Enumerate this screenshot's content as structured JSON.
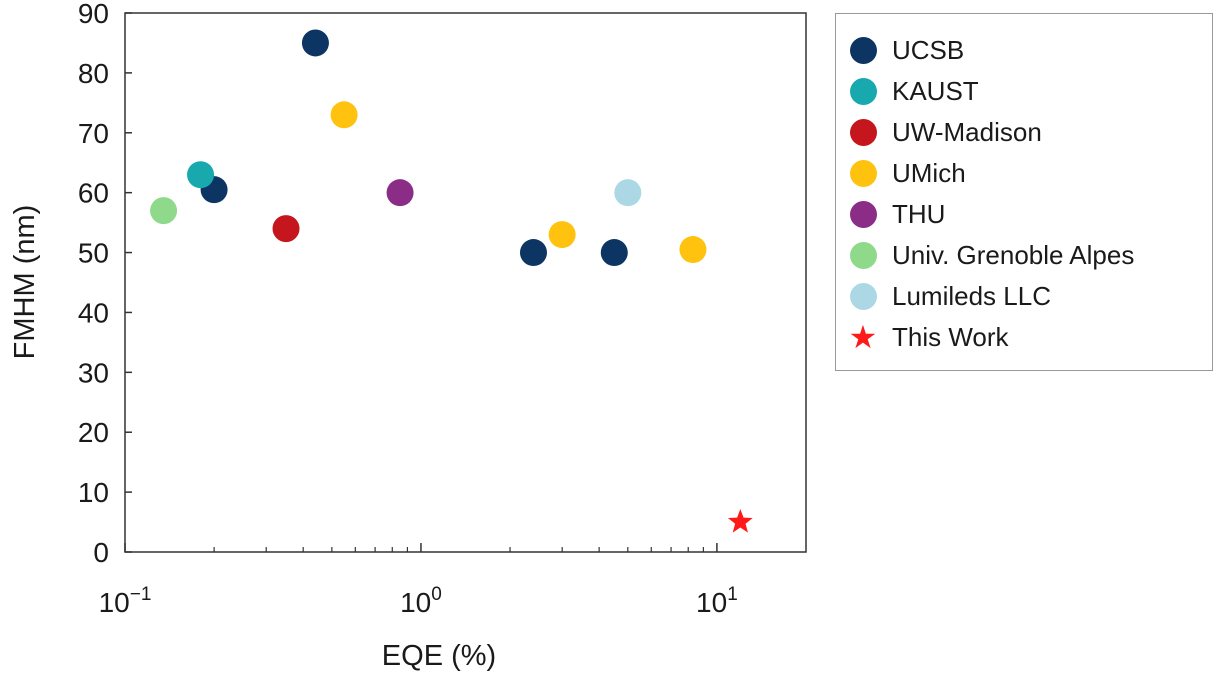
{
  "chart_data": {
    "type": "scatter",
    "xlabel": "EQE (%)",
    "ylabel": "FMHM (nm)",
    "x_scale": "log",
    "xlim": [
      0.1,
      20
    ],
    "ylim": [
      0,
      90
    ],
    "x_ticks": [
      {
        "value": 0.1,
        "base": "10",
        "exp": "−1"
      },
      {
        "value": 1,
        "base": "10",
        "exp": "0"
      },
      {
        "value": 10,
        "base": "10",
        "exp": "1"
      }
    ],
    "y_ticks": [
      "0",
      "10",
      "20",
      "30",
      "40",
      "50",
      "60",
      "70",
      "80",
      "90"
    ],
    "grid": false,
    "legend_position": "outside-right",
    "series": [
      {
        "name": "UCSB",
        "color": "#0d3563",
        "marker": "circle",
        "points": [
          {
            "x": 0.2,
            "y": 60.5
          },
          {
            "x": 0.44,
            "y": 85
          },
          {
            "x": 2.4,
            "y": 50
          },
          {
            "x": 4.5,
            "y": 50
          }
        ]
      },
      {
        "name": "KAUST",
        "color": "#17a9ad",
        "marker": "circle",
        "points": [
          {
            "x": 0.18,
            "y": 63
          }
        ]
      },
      {
        "name": "UW-Madison",
        "color": "#c4161c",
        "marker": "circle",
        "points": [
          {
            "x": 0.35,
            "y": 54
          }
        ]
      },
      {
        "name": "UMich",
        "color": "#ffc20e",
        "marker": "circle",
        "points": [
          {
            "x": 0.55,
            "y": 73
          },
          {
            "x": 3.0,
            "y": 53
          },
          {
            "x": 8.3,
            "y": 50.5
          }
        ]
      },
      {
        "name": "THU",
        "color": "#8b2c87",
        "marker": "circle",
        "points": [
          {
            "x": 0.85,
            "y": 60
          }
        ]
      },
      {
        "name": "Univ. Grenoble Alpes",
        "color": "#8ed98a",
        "marker": "circle",
        "points": [
          {
            "x": 0.135,
            "y": 57
          }
        ]
      },
      {
        "name": "Lumileds LLC",
        "color": "#acd8e6",
        "marker": "circle",
        "points": [
          {
            "x": 5.0,
            "y": 60
          }
        ]
      },
      {
        "name": "This Work",
        "color": "#ff1a1a",
        "marker": "star",
        "points": [
          {
            "x": 12,
            "y": 5
          }
        ]
      }
    ]
  }
}
